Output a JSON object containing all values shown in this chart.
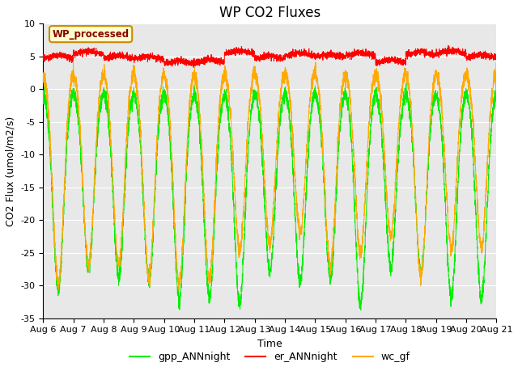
{
  "title": "WP CO2 Fluxes",
  "ylabel": "CO2 Flux (umol/m2/s)",
  "xlabel": "Time",
  "ylim": [
    -35,
    10
  ],
  "annotation_text": "WP_processed",
  "annotation_facecolor": "#ffffcc",
  "annotation_edgecolor": "#cc8800",
  "annotation_textcolor": "#880000",
  "bg_color": "#e8e8e8",
  "grid_color": "#ffffff",
  "line_green": "#00ee00",
  "line_red": "#ff0000",
  "line_orange": "#ffaa00",
  "legend_labels": [
    "gpp_ANNnight",
    "er_ANNnight",
    "wc_gf"
  ],
  "n_days": 15,
  "points_per_day": 288,
  "date_labels": [
    "Aug 6",
    "Aug 7",
    "Aug 8",
    "Aug 9",
    "Aug 10",
    "Aug 11",
    "Aug 12",
    "Aug 13",
    "Aug 14",
    "Aug 15",
    "Aug 16",
    "Aug 17",
    "Aug 18",
    "Aug 19",
    "Aug 20",
    "Aug 21"
  ],
  "title_fontsize": 12,
  "axis_fontsize": 9,
  "tick_fontsize": 8
}
